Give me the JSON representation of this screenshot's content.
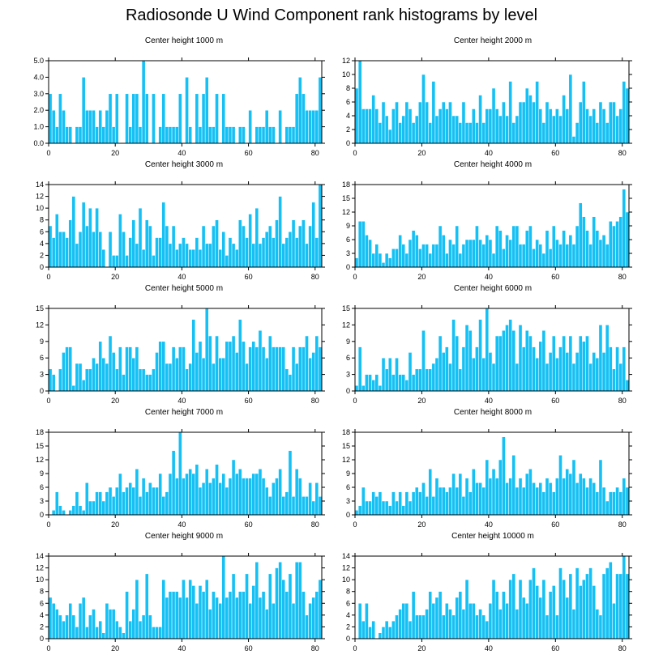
{
  "title": "Radiosonde U Wind Component rank histograms by level",
  "colors": {
    "bar": "#14c0f4",
    "bar_edge": "#ffffff",
    "axis": "#000000"
  },
  "chart_data": [
    {
      "type": "bar",
      "title": "Center height 1000 m",
      "xlim": [
        0,
        82
      ],
      "ylim": [
        0,
        5
      ],
      "xticks": [
        0,
        20,
        40,
        60,
        80
      ],
      "yticks": [
        0,
        1,
        2,
        3,
        4,
        5
      ],
      "ytick_labels": [
        "0.0",
        "1.0",
        "2.0",
        "3.0",
        "4.0",
        "5.0"
      ],
      "values": [
        3,
        2,
        1,
        3,
        2,
        1,
        1,
        0,
        1,
        1,
        4,
        2,
        2,
        2,
        1,
        2,
        1,
        2,
        3,
        1,
        3,
        0,
        0,
        3,
        1,
        3,
        3,
        1,
        5,
        3,
        0,
        3,
        0,
        1,
        3,
        1,
        1,
        1,
        1,
        3,
        0,
        4,
        1,
        0,
        3,
        1,
        3,
        4,
        1,
        1,
        3,
        0,
        3,
        1,
        1,
        1,
        0,
        1,
        1,
        0,
        2,
        0,
        1,
        1,
        1,
        2,
        1,
        1,
        0,
        2,
        0,
        1,
        1,
        1,
        3,
        4,
        3,
        2,
        2,
        2,
        2,
        4
      ]
    },
    {
      "type": "bar",
      "title": "Center height 2000 m",
      "xlim": [
        0,
        82
      ],
      "ylim": [
        0,
        12
      ],
      "xticks": [
        0,
        20,
        40,
        60,
        80
      ],
      "yticks": [
        0,
        2,
        4,
        6,
        8,
        10,
        12
      ],
      "ytick_labels": [
        "0",
        "2",
        "4",
        "6",
        "8",
        "10",
        "12"
      ],
      "values": [
        8,
        12,
        5,
        5,
        5,
        7,
        5,
        3,
        6,
        4,
        2,
        5,
        6,
        3,
        4,
        6,
        5,
        3,
        4,
        6,
        10,
        6,
        3,
        9,
        4,
        5,
        6,
        5,
        6,
        4,
        4,
        3,
        6,
        3,
        3,
        5,
        3,
        7,
        3,
        5,
        5,
        8,
        5,
        4,
        6,
        4,
        9,
        3,
        4,
        6,
        6,
        8,
        7,
        6,
        9,
        5,
        3,
        6,
        5,
        4,
        5,
        4,
        7,
        5,
        10,
        1,
        3,
        6,
        9,
        5,
        4,
        5,
        3,
        6,
        5,
        3,
        6,
        6,
        4,
        5,
        9,
        8
      ]
    },
    {
      "type": "bar",
      "title": "Center height 3000 m",
      "xlim": [
        0,
        82
      ],
      "ylim": [
        0,
        14
      ],
      "xticks": [
        0,
        20,
        40,
        60,
        80
      ],
      "yticks": [
        0,
        2,
        4,
        6,
        8,
        10,
        12,
        14
      ],
      "ytick_labels": [
        "0",
        "2",
        "4",
        "6",
        "8",
        "10",
        "12",
        "14"
      ],
      "values": [
        7,
        5,
        9,
        6,
        6,
        5,
        8,
        12,
        4,
        6,
        11,
        7,
        10,
        6,
        10,
        6,
        3,
        0,
        6,
        2,
        2,
        9,
        6,
        2,
        5,
        8,
        4,
        10,
        3,
        8,
        7,
        2,
        5,
        5,
        11,
        7,
        4,
        7,
        3,
        4,
        5,
        4,
        3,
        3,
        5,
        3,
        7,
        4,
        4,
        7,
        8,
        3,
        6,
        2,
        5,
        4,
        3,
        8,
        7,
        5,
        9,
        4,
        10,
        4,
        5,
        6,
        7,
        5,
        8,
        12,
        4,
        5,
        6,
        8,
        5,
        7,
        8,
        4,
        7,
        11,
        5,
        14
      ]
    },
    {
      "type": "bar",
      "title": "Center height 4000 m",
      "xlim": [
        0,
        82
      ],
      "ylim": [
        0,
        18
      ],
      "xticks": [
        0,
        20,
        40,
        60,
        80
      ],
      "yticks": [
        0,
        3,
        6,
        9,
        12,
        15,
        18
      ],
      "ytick_labels": [
        "0",
        "3",
        "6",
        "9",
        "12",
        "15",
        "18"
      ],
      "values": [
        2,
        10,
        10,
        7,
        6,
        3,
        5,
        3,
        1,
        3,
        2,
        4,
        4,
        7,
        5,
        3,
        6,
        8,
        7,
        4,
        5,
        5,
        3,
        5,
        5,
        9,
        7,
        3,
        6,
        5,
        9,
        3,
        5,
        6,
        6,
        6,
        9,
        6,
        5,
        7,
        6,
        3,
        9,
        8,
        4,
        7,
        6,
        9,
        9,
        5,
        5,
        8,
        9,
        4,
        6,
        5,
        3,
        8,
        4,
        9,
        6,
        5,
        8,
        5,
        7,
        5,
        9,
        14,
        11,
        8,
        5,
        11,
        8,
        6,
        7,
        5,
        10,
        9,
        10,
        11,
        17,
        12
      ]
    },
    {
      "type": "bar",
      "title": "Center height 5000 m",
      "xlim": [
        0,
        82
      ],
      "ylim": [
        0,
        15
      ],
      "xticks": [
        0,
        20,
        40,
        60,
        80
      ],
      "yticks": [
        0,
        3,
        6,
        9,
        12,
        15
      ],
      "ytick_labels": [
        "0",
        "3",
        "6",
        "9",
        "12",
        "15"
      ],
      "values": [
        4,
        3,
        0,
        4,
        7,
        8,
        8,
        1,
        5,
        5,
        2,
        4,
        4,
        6,
        5,
        9,
        6,
        5,
        10,
        7,
        4,
        8,
        3,
        8,
        8,
        6,
        8,
        4,
        4,
        3,
        3,
        4,
        7,
        9,
        9,
        5,
        5,
        8,
        6,
        8,
        8,
        4,
        5,
        13,
        7,
        9,
        6,
        15,
        10,
        5,
        10,
        6,
        6,
        9,
        9,
        10,
        7,
        13,
        9,
        5,
        8,
        9,
        8,
        11,
        8,
        6,
        10,
        8,
        8,
        8,
        8,
        4,
        3,
        8,
        5,
        8,
        8,
        10,
        6,
        7,
        10,
        8
      ]
    },
    {
      "type": "bar",
      "title": "Center height 6000 m",
      "xlim": [
        0,
        82
      ],
      "ylim": [
        0,
        15
      ],
      "xticks": [
        0,
        20,
        40,
        60,
        80
      ],
      "yticks": [
        0,
        3,
        6,
        9,
        12,
        15
      ],
      "ytick_labels": [
        "0",
        "3",
        "6",
        "9",
        "12",
        "15"
      ],
      "values": [
        1,
        8,
        1,
        3,
        3,
        2,
        3,
        1,
        6,
        4,
        6,
        3,
        6,
        3,
        3,
        2,
        7,
        3,
        4,
        4,
        11,
        4,
        4,
        5,
        6,
        10,
        7,
        8,
        5,
        13,
        10,
        4,
        8,
        12,
        11,
        6,
        8,
        13,
        6,
        15,
        7,
        5,
        10,
        10,
        11,
        12,
        13,
        11,
        5,
        12,
        8,
        11,
        10,
        8,
        6,
        9,
        11,
        5,
        7,
        10,
        6,
        8,
        10,
        7,
        10,
        5,
        7,
        10,
        9,
        10,
        5,
        7,
        6,
        12,
        7,
        12,
        8,
        4,
        8,
        5,
        8,
        2
      ]
    },
    {
      "type": "bar",
      "title": "Center height 7000 m",
      "xlim": [
        0,
        82
      ],
      "ylim": [
        0,
        18
      ],
      "xticks": [
        0,
        20,
        40,
        60,
        80
      ],
      "yticks": [
        0,
        3,
        6,
        9,
        12,
        15,
        18
      ],
      "ytick_labels": [
        "0",
        "3",
        "6",
        "9",
        "12",
        "15",
        "18"
      ],
      "values": [
        0,
        1,
        5,
        2,
        1,
        0,
        1,
        2,
        5,
        2,
        1,
        7,
        3,
        3,
        5,
        5,
        3,
        5,
        6,
        4,
        6,
        9,
        5,
        6,
        7,
        6,
        10,
        4,
        8,
        5,
        7,
        6,
        6,
        9,
        4,
        5,
        9,
        14,
        8,
        18,
        8,
        9,
        10,
        9,
        11,
        6,
        7,
        10,
        7,
        8,
        11,
        7,
        9,
        6,
        8,
        12,
        9,
        10,
        8,
        8,
        8,
        9,
        9,
        10,
        8,
        6,
        4,
        7,
        8,
        10,
        4,
        5,
        14,
        4,
        10,
        8,
        4,
        4,
        7,
        3,
        7,
        4
      ]
    },
    {
      "type": "bar",
      "title": "Center height 8000 m",
      "xlim": [
        0,
        82
      ],
      "ylim": [
        0,
        18
      ],
      "xticks": [
        0,
        20,
        40,
        60,
        80
      ],
      "yticks": [
        0,
        3,
        6,
        9,
        12,
        15,
        18
      ],
      "ytick_labels": [
        "0",
        "3",
        "6",
        "9",
        "12",
        "15",
        "18"
      ],
      "values": [
        1,
        2,
        6,
        3,
        3,
        5,
        4,
        5,
        3,
        3,
        2,
        5,
        3,
        5,
        2,
        5,
        3,
        5,
        6,
        5,
        7,
        4,
        10,
        4,
        8,
        6,
        6,
        5,
        6,
        9,
        6,
        9,
        4,
        8,
        5,
        10,
        7,
        7,
        6,
        12,
        8,
        10,
        8,
        12,
        17,
        7,
        8,
        13,
        6,
        8,
        6,
        9,
        10,
        7,
        6,
        7,
        5,
        8,
        7,
        5,
        8,
        13,
        8,
        10,
        9,
        12,
        7,
        9,
        8,
        6,
        8,
        7,
        5,
        12,
        6,
        3,
        5,
        5,
        6,
        5,
        8,
        6
      ]
    },
    {
      "type": "bar",
      "title": "Center height 9000 m",
      "xlim": [
        0,
        82
      ],
      "ylim": [
        0,
        14
      ],
      "xticks": [
        0,
        20,
        40,
        60,
        80
      ],
      "yticks": [
        0,
        2,
        4,
        6,
        8,
        10,
        12,
        14
      ],
      "ytick_labels": [
        "0",
        "2",
        "4",
        "6",
        "8",
        "10",
        "12",
        "14"
      ],
      "values": [
        7,
        6,
        5,
        4,
        3,
        4,
        6,
        4,
        2,
        6,
        7,
        2,
        4,
        5,
        2,
        3,
        1,
        6,
        5,
        5,
        3,
        2,
        1,
        8,
        3,
        5,
        10,
        3,
        4,
        11,
        4,
        2,
        2,
        2,
        10,
        7,
        8,
        8,
        8,
        7,
        10,
        7,
        10,
        9,
        6,
        9,
        8,
        10,
        5,
        8,
        7,
        6,
        14,
        7,
        8,
        11,
        7,
        8,
        8,
        11,
        6,
        9,
        13,
        7,
        8,
        5,
        11,
        6,
        12,
        13,
        10,
        8,
        11,
        6,
        13,
        13,
        8,
        4,
        6,
        7,
        8,
        10
      ]
    },
    {
      "type": "bar",
      "title": "Center height 10000 m",
      "xlim": [
        0,
        82
      ],
      "ylim": [
        0,
        14
      ],
      "xticks": [
        0,
        20,
        40,
        60,
        80
      ],
      "yticks": [
        0,
        2,
        4,
        6,
        8,
        10,
        12,
        14
      ],
      "ytick_labels": [
        "0",
        "2",
        "4",
        "6",
        "8",
        "10",
        "12",
        "14"
      ],
      "values": [
        0,
        6,
        3,
        6,
        2,
        3,
        0,
        1,
        2,
        3,
        2,
        3,
        4,
        5,
        6,
        6,
        3,
        8,
        4,
        4,
        4,
        5,
        8,
        6,
        7,
        8,
        4,
        6,
        5,
        4,
        7,
        8,
        5,
        10,
        6,
        6,
        4,
        5,
        4,
        3,
        6,
        10,
        8,
        5,
        8,
        6,
        10,
        11,
        5,
        10,
        7,
        6,
        10,
        12,
        9,
        7,
        10,
        4,
        8,
        9,
        4,
        12,
        10,
        7,
        11,
        5,
        12,
        9,
        10,
        11,
        12,
        9,
        5,
        4,
        11,
        12,
        13,
        6,
        11,
        11,
        14,
        11
      ]
    }
  ]
}
